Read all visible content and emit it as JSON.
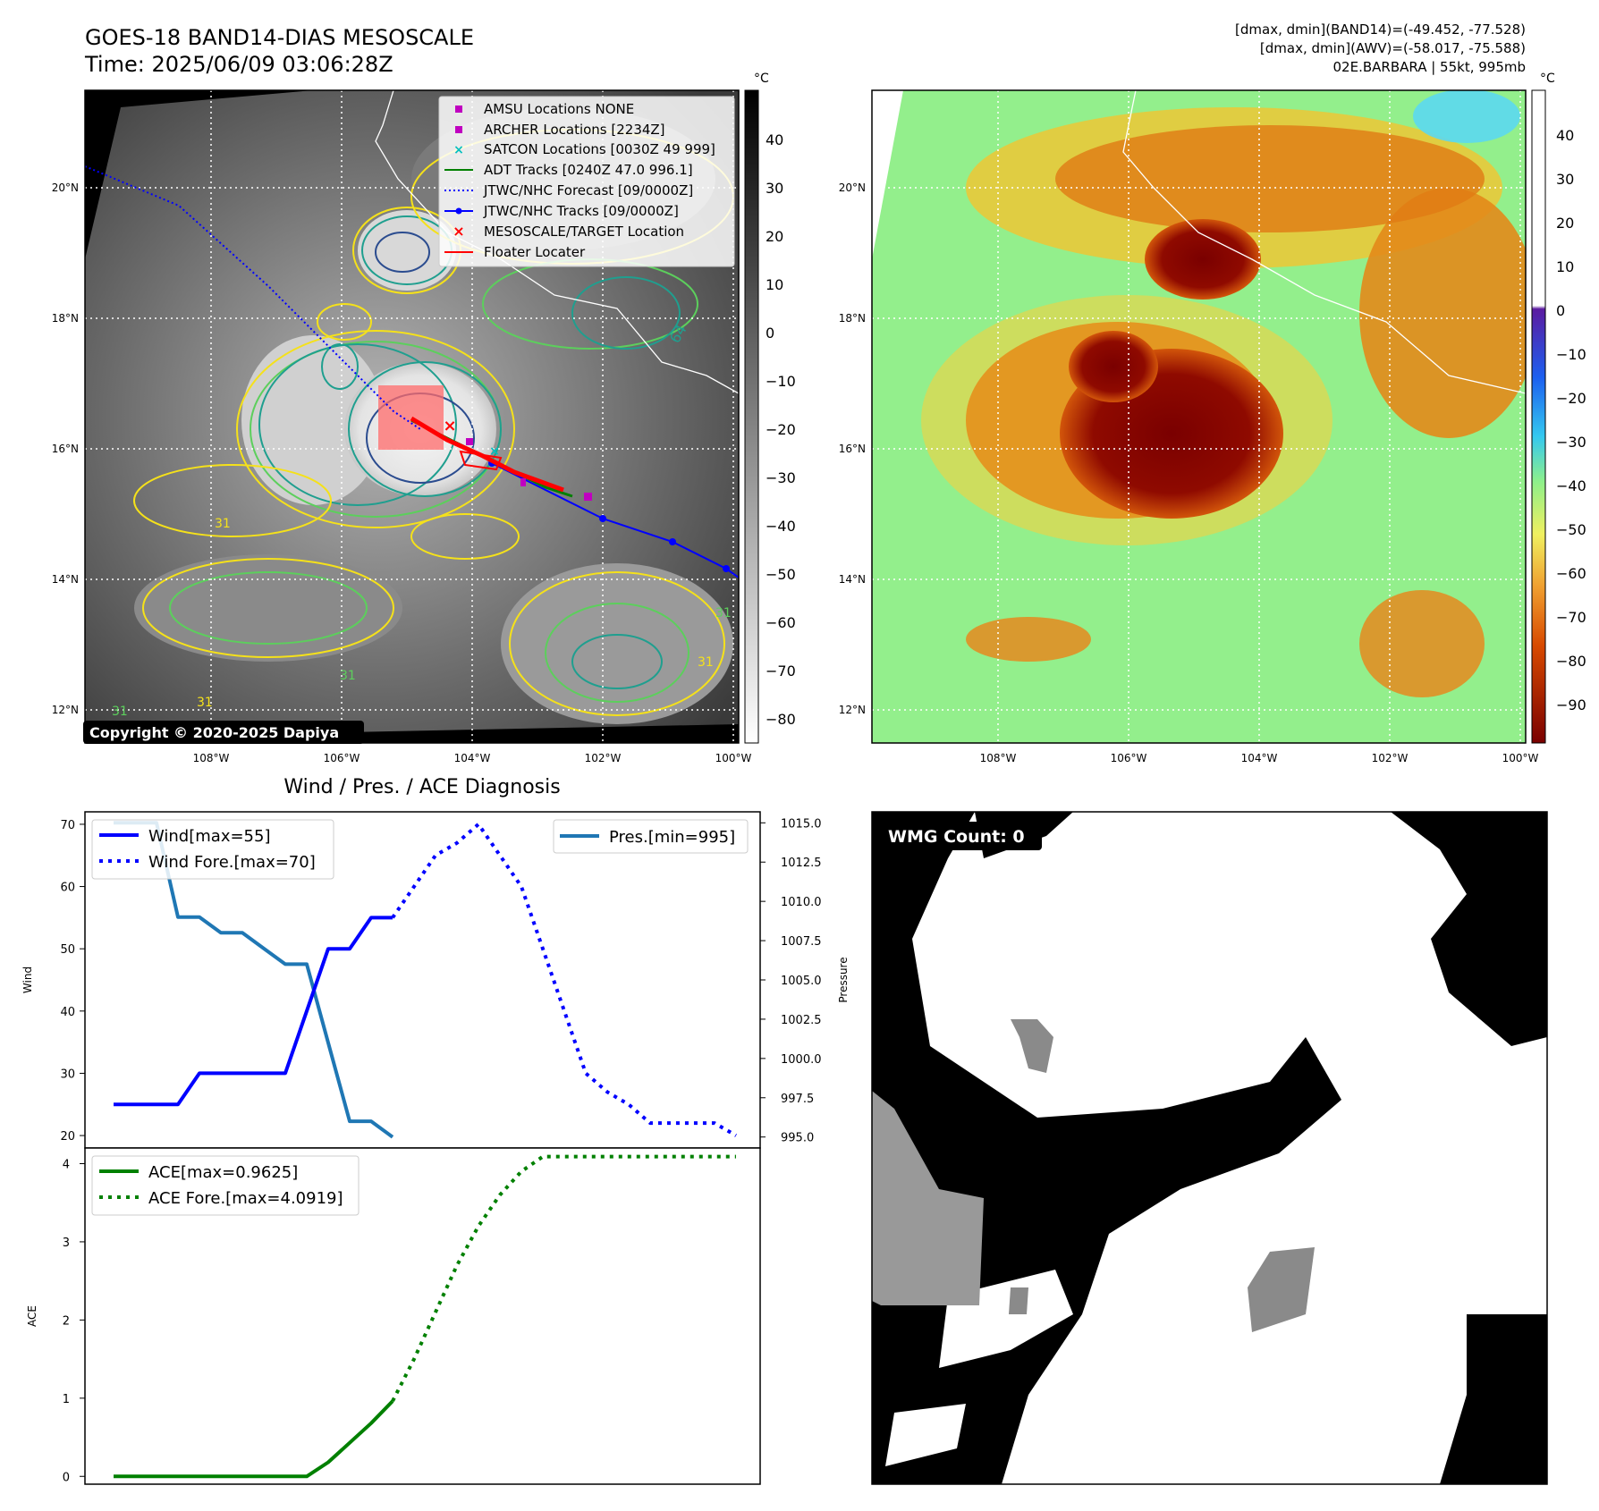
{
  "header": {
    "title_line1": "GOES-18 BAND14-DIAS MESOSCALE",
    "title_line2": "Time: 2025/06/09 03:06:28Z",
    "info_line1": "[dmax, dmin](BAND14)=(-49.452, -77.528)",
    "info_line2": "[dmax, dmin](AWV)=(-58.017, -75.588)",
    "info_line3": "02E.BARBARA | 55kt, 995mb"
  },
  "map_axes": {
    "lat_labels": [
      "20°N",
      "18°N",
      "16°N",
      "14°N",
      "12°N"
    ],
    "lon_labels": [
      "108°W",
      "106°W",
      "104°W",
      "102°W",
      "100°W"
    ]
  },
  "ir_panel": {
    "legend": [
      {
        "label": "AMSU Locations NONE",
        "marker": "square",
        "color": "#c000c0"
      },
      {
        "label": "ARCHER Locations [2234Z]",
        "marker": "square",
        "color": "#c000c0"
      },
      {
        "label": "SATCON Locations [0030Z 49 999]",
        "marker": "x",
        "color": "#00bfbf"
      },
      {
        "label": "ADT Tracks [0240Z 47.0 996.1]",
        "marker": "line",
        "color": "#008000"
      },
      {
        "label": "JTWC/NHC Forecast [09/0000Z]",
        "marker": "dotted",
        "color": "#0000ff"
      },
      {
        "label": "JTWC/NHC Tracks [09/0000Z]",
        "marker": "line-dot",
        "color": "#0000ff"
      },
      {
        "label": "MESOSCALE/TARGET Location",
        "marker": "x",
        "color": "#ff0000"
      },
      {
        "label": "Floater Locater",
        "marker": "line",
        "color": "#ff0000"
      }
    ],
    "colorbar_unit": "°C",
    "colorbar_ticks": [
      "40",
      "30",
      "20",
      "10",
      "0",
      "−10",
      "−20",
      "−30",
      "−40",
      "−50",
      "−60",
      "−70",
      "−80"
    ],
    "copyright": "Copyright © 2020-2025 Dapiya",
    "contour_labels": [
      "64",
      "31",
      "31",
      "31",
      "31",
      "31",
      "31"
    ]
  },
  "awv_panel": {
    "colorbar_unit": "°C",
    "colorbar_ticks": [
      "40",
      "30",
      "20",
      "10",
      "0",
      "−10",
      "−20",
      "−30",
      "−40",
      "−50",
      "−60",
      "−70",
      "−80",
      "−90"
    ]
  },
  "diagnosis": {
    "title": "Wind / Pres. / ACE Diagnosis",
    "wind_ylabel": "Wind",
    "pres_ylabel": "Pressure",
    "ace_ylabel": "ACE",
    "wind_yticks": [
      "70",
      "60",
      "50",
      "40",
      "30",
      "20"
    ],
    "pres_yticks": [
      "1015.0",
      "1012.5",
      "1010.0",
      "1007.5",
      "1005.0",
      "1002.5",
      "1000.0",
      "997.5",
      "995.0"
    ],
    "ace_yticks": [
      "4",
      "3",
      "2",
      "1",
      "0"
    ],
    "legend_wind": "Wind[max=55]",
    "legend_wind_fore": "Wind Fore.[max=70]",
    "legend_pres": "Pres.[min=995]",
    "legend_ace": "ACE[max=0.9625]",
    "legend_ace_fore": "ACE Fore.[max=4.0919]"
  },
  "wmg_panel": {
    "label": "WMG Count: 0"
  },
  "colors": {
    "wind": "#0000ff",
    "pressure": "#1f77b4",
    "ace": "#008000",
    "track_forecast": "#0000ff",
    "floater": "#ff0000"
  },
  "chart_data": [
    {
      "type": "line",
      "title": "",
      "ylabel": "Wind",
      "ylim": [
        18,
        72
      ],
      "x": [
        0,
        1,
        2,
        3,
        4,
        5,
        6,
        7,
        8,
        9,
        10,
        11,
        12,
        13,
        14,
        15,
        16,
        17,
        18,
        19,
        20,
        21,
        22,
        23,
        24,
        25,
        26,
        27,
        28,
        29
      ],
      "series": [
        {
          "name": "Wind[max=55]",
          "style": "solid",
          "x": [
            0,
            1,
            2,
            3,
            4,
            5,
            6,
            7,
            8,
            9,
            10,
            11,
            12,
            13
          ],
          "values": [
            25,
            25,
            25,
            25,
            30,
            30,
            30,
            30,
            30,
            40,
            50,
            50,
            55,
            55
          ]
        },
        {
          "name": "Wind Fore.[max=70]",
          "style": "dotted",
          "x": [
            13,
            14,
            15,
            16,
            17,
            18,
            19,
            20,
            21,
            22,
            23,
            24,
            25,
            26,
            27,
            28,
            29
          ],
          "values": [
            55,
            60,
            65,
            67,
            70,
            65,
            60,
            50,
            40,
            30,
            27,
            25,
            22,
            22,
            22,
            22,
            20
          ]
        }
      ]
    },
    {
      "type": "line",
      "title": "",
      "ylabel": "Pressure",
      "ylim": [
        994.3,
        1015.7
      ],
      "series": [
        {
          "name": "Pres.[min=995]",
          "style": "solid",
          "x": [
            0,
            1,
            2,
            3,
            4,
            5,
            6,
            7,
            8,
            9,
            10,
            11,
            12,
            13
          ],
          "values": [
            1015,
            1015,
            1015,
            1009,
            1009,
            1008,
            1008,
            1007,
            1006,
            1006,
            1001,
            996,
            996,
            995
          ]
        }
      ]
    },
    {
      "type": "line",
      "title": "",
      "ylabel": "ACE",
      "ylim": [
        -0.1,
        4.2
      ],
      "series": [
        {
          "name": "ACE[max=0.9625]",
          "style": "solid",
          "x": [
            0,
            1,
            2,
            3,
            4,
            5,
            6,
            7,
            8,
            9,
            10,
            11,
            12,
            13
          ],
          "values": [
            0,
            0,
            0,
            0,
            0,
            0,
            0,
            0,
            0,
            0,
            0.18,
            0.43,
            0.68,
            0.9625
          ]
        },
        {
          "name": "ACE Fore.[max=4.0919]",
          "style": "dotted",
          "x": [
            13,
            14,
            15,
            16,
            17,
            18,
            19,
            20,
            21,
            22,
            23,
            24,
            25,
            26,
            27,
            28,
            29
          ],
          "values": [
            0.9625,
            1.5,
            2.1,
            2.7,
            3.2,
            3.6,
            3.9,
            4.09,
            4.09,
            4.09,
            4.09,
            4.09,
            4.09,
            4.09,
            4.09,
            4.09,
            4.09
          ]
        }
      ]
    }
  ]
}
